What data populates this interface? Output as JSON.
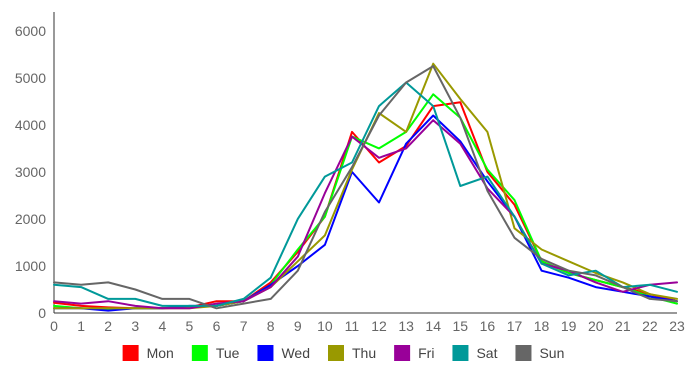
{
  "chart_data": {
    "type": "line",
    "title": "",
    "xlabel": "",
    "ylabel": "",
    "x": [
      0,
      1,
      2,
      3,
      4,
      5,
      6,
      7,
      8,
      9,
      10,
      11,
      12,
      13,
      14,
      15,
      16,
      17,
      18,
      19,
      20,
      21,
      22,
      23
    ],
    "x_tick_labels": [
      "0",
      "1",
      "2",
      "3",
      "4",
      "5",
      "6",
      "7",
      "8",
      "9",
      "10",
      "11",
      "12",
      "13",
      "14",
      "15",
      "16",
      "17",
      "18",
      "19",
      "20",
      "21",
      "22",
      "23"
    ],
    "ylim": [
      0,
      6400
    ],
    "y_ticks": [
      0,
      1000,
      2000,
      3000,
      4000,
      5000,
      6000
    ],
    "y_tick_labels": [
      "0",
      "1000",
      "2000",
      "3000",
      "4000",
      "5000",
      "6000"
    ],
    "grid": false,
    "legend_position": "bottom",
    "series": [
      {
        "name": "Mon",
        "color": "#ff0000",
        "values": [
          220,
          150,
          120,
          100,
          100,
          120,
          250,
          250,
          650,
          1300,
          2050,
          3850,
          3200,
          3550,
          4400,
          4480,
          3000,
          2300,
          1100,
          850,
          700,
          550,
          400,
          250
        ]
      },
      {
        "name": "Tue",
        "color": "#00ff00",
        "values": [
          150,
          100,
          80,
          100,
          100,
          120,
          150,
          250,
          600,
          1350,
          2050,
          3750,
          3500,
          3850,
          4650,
          4150,
          3050,
          2400,
          1100,
          850,
          700,
          550,
          350,
          200
        ]
      },
      {
        "name": "Wed",
        "color": "#0000ff",
        "values": [
          100,
          100,
          50,
          100,
          100,
          150,
          150,
          250,
          600,
          1000,
          1450,
          3000,
          2350,
          3600,
          4200,
          3650,
          2800,
          2050,
          900,
          750,
          550,
          450,
          350,
          250
        ]
      },
      {
        "name": "Thu",
        "color": "#999900",
        "values": [
          100,
          100,
          100,
          100,
          100,
          100,
          150,
          250,
          550,
          1100,
          1650,
          3050,
          4250,
          3850,
          5300,
          4550,
          3850,
          1800,
          1350,
          1100,
          850,
          650,
          400,
          300
        ]
      },
      {
        "name": "Fri",
        "color": "#990099",
        "values": [
          250,
          200,
          250,
          150,
          100,
          100,
          200,
          250,
          550,
          1200,
          2550,
          3750,
          3300,
          3500,
          4100,
          3600,
          2650,
          2050,
          1050,
          900,
          650,
          450,
          600,
          650
        ]
      },
      {
        "name": "Sat",
        "color": "#009999",
        "values": [
          600,
          550,
          300,
          300,
          150,
          150,
          150,
          300,
          750,
          2000,
          2900,
          3200,
          4400,
          4900,
          4400,
          2700,
          2900,
          2050,
          1050,
          800,
          900,
          550,
          600,
          450
        ]
      },
      {
        "name": "Sun",
        "color": "#666666",
        "values": [
          650,
          600,
          650,
          500,
          300,
          300,
          100,
          200,
          300,
          900,
          2150,
          3100,
          4200,
          4900,
          5250,
          4150,
          2600,
          1600,
          1150,
          900,
          800,
          550,
          300,
          250
        ]
      }
    ]
  }
}
